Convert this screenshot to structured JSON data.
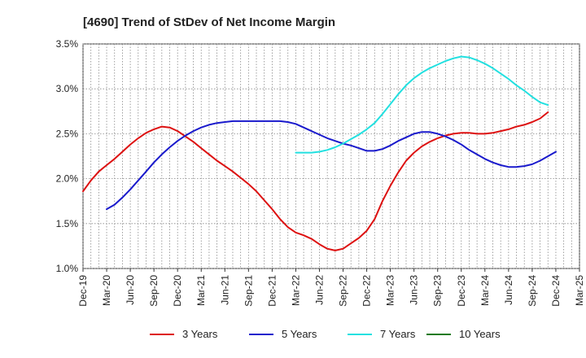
{
  "chart_data": {
    "type": "line",
    "title": "[4690]  Trend of StDev of Net Income Margin",
    "xlabel": "",
    "ylabel": "",
    "ylim": [
      1.0,
      3.5
    ],
    "yticks": [
      "1.0%",
      "1.5%",
      "2.0%",
      "2.5%",
      "3.0%",
      "3.5%"
    ],
    "ytick_values": [
      1.0,
      1.5,
      2.0,
      2.5,
      3.0,
      3.5
    ],
    "xticks": [
      "Dec-19",
      "Mar-20",
      "Jun-20",
      "Sep-20",
      "Dec-20",
      "Mar-21",
      "Jun-21",
      "Sep-21",
      "Dec-21",
      "Mar-22",
      "Jun-22",
      "Sep-22",
      "Dec-22",
      "Mar-23",
      "Jun-23",
      "Sep-23",
      "Dec-23",
      "Mar-24",
      "Jun-24",
      "Sep-24",
      "Dec-24",
      "Mar-25"
    ],
    "grid": true,
    "legend_position": "bottom",
    "series": [
      {
        "name": "3 Years",
        "color": "#dd1111",
        "points": [
          [
            "Dec-19",
            1.86
          ],
          [
            "Jan-20",
            1.98
          ],
          [
            "Feb-20",
            2.08
          ],
          [
            "Mar-20",
            2.15
          ],
          [
            "Apr-20",
            2.22
          ],
          [
            "May-20",
            2.3
          ],
          [
            "Jun-20",
            2.38
          ],
          [
            "Jul-20",
            2.45
          ],
          [
            "Aug-20",
            2.51
          ],
          [
            "Sep-20",
            2.55
          ],
          [
            "Oct-20",
            2.58
          ],
          [
            "Nov-20",
            2.57
          ],
          [
            "Dec-20",
            2.53
          ],
          [
            "Jan-21",
            2.47
          ],
          [
            "Feb-21",
            2.41
          ],
          [
            "Mar-21",
            2.34
          ],
          [
            "Apr-21",
            2.27
          ],
          [
            "May-21",
            2.2
          ],
          [
            "Jun-21",
            2.14
          ],
          [
            "Jul-21",
            2.08
          ],
          [
            "Aug-21",
            2.01
          ],
          [
            "Sep-21",
            1.94
          ],
          [
            "Oct-21",
            1.86
          ],
          [
            "Nov-21",
            1.76
          ],
          [
            "Dec-21",
            1.66
          ],
          [
            "Jan-22",
            1.55
          ],
          [
            "Feb-22",
            1.46
          ],
          [
            "Mar-22",
            1.4
          ],
          [
            "Apr-22",
            1.37
          ],
          [
            "May-22",
            1.33
          ],
          [
            "Jun-22",
            1.27
          ],
          [
            "Jul-22",
            1.22
          ],
          [
            "Aug-22",
            1.2
          ],
          [
            "Sep-22",
            1.22
          ],
          [
            "Oct-22",
            1.28
          ],
          [
            "Nov-22",
            1.34
          ],
          [
            "Dec-22",
            1.42
          ],
          [
            "Jan-23",
            1.55
          ],
          [
            "Feb-23",
            1.75
          ],
          [
            "Mar-23",
            1.92
          ],
          [
            "Apr-23",
            2.07
          ],
          [
            "May-23",
            2.2
          ],
          [
            "Jun-23",
            2.29
          ],
          [
            "Jul-23",
            2.36
          ],
          [
            "Aug-23",
            2.41
          ],
          [
            "Sep-23",
            2.45
          ],
          [
            "Oct-23",
            2.48
          ],
          [
            "Nov-23",
            2.5
          ],
          [
            "Dec-23",
            2.51
          ],
          [
            "Jan-24",
            2.51
          ],
          [
            "Feb-24",
            2.5
          ],
          [
            "Mar-24",
            2.5
          ],
          [
            "Apr-24",
            2.51
          ],
          [
            "May-24",
            2.53
          ],
          [
            "Jun-24",
            2.55
          ],
          [
            "Jul-24",
            2.58
          ],
          [
            "Aug-24",
            2.6
          ],
          [
            "Sep-24",
            2.63
          ],
          [
            "Oct-24",
            2.67
          ],
          [
            "Nov-24",
            2.74
          ]
        ]
      },
      {
        "name": "5 Years",
        "color": "#1a1acc",
        "points": [
          [
            "Mar-20",
            1.66
          ],
          [
            "Apr-20",
            1.71
          ],
          [
            "May-20",
            1.79
          ],
          [
            "Jun-20",
            1.88
          ],
          [
            "Jul-20",
            1.98
          ],
          [
            "Aug-20",
            2.08
          ],
          [
            "Sep-20",
            2.18
          ],
          [
            "Oct-20",
            2.27
          ],
          [
            "Nov-20",
            2.35
          ],
          [
            "Dec-20",
            2.42
          ],
          [
            "Jan-21",
            2.48
          ],
          [
            "Feb-21",
            2.53
          ],
          [
            "Mar-21",
            2.57
          ],
          [
            "Apr-21",
            2.6
          ],
          [
            "May-21",
            2.62
          ],
          [
            "Jun-21",
            2.63
          ],
          [
            "Jul-21",
            2.64
          ],
          [
            "Aug-21",
            2.64
          ],
          [
            "Sep-21",
            2.64
          ],
          [
            "Oct-21",
            2.64
          ],
          [
            "Nov-21",
            2.64
          ],
          [
            "Dec-21",
            2.64
          ],
          [
            "Jan-22",
            2.64
          ],
          [
            "Feb-22",
            2.63
          ],
          [
            "Mar-22",
            2.61
          ],
          [
            "Apr-22",
            2.57
          ],
          [
            "May-22",
            2.53
          ],
          [
            "Jun-22",
            2.49
          ],
          [
            "Jul-22",
            2.45
          ],
          [
            "Aug-22",
            2.42
          ],
          [
            "Sep-22",
            2.39
          ],
          [
            "Oct-22",
            2.37
          ],
          [
            "Nov-22",
            2.34
          ],
          [
            "Dec-22",
            2.31
          ],
          [
            "Jan-23",
            2.31
          ],
          [
            "Feb-23",
            2.33
          ],
          [
            "Mar-23",
            2.37
          ],
          [
            "Apr-23",
            2.42
          ],
          [
            "May-23",
            2.46
          ],
          [
            "Jun-23",
            2.5
          ],
          [
            "Jul-23",
            2.52
          ],
          [
            "Aug-23",
            2.52
          ],
          [
            "Sep-23",
            2.5
          ],
          [
            "Oct-23",
            2.47
          ],
          [
            "Nov-23",
            2.43
          ],
          [
            "Dec-23",
            2.38
          ],
          [
            "Jan-24",
            2.32
          ],
          [
            "Feb-24",
            2.27
          ],
          [
            "Mar-24",
            2.22
          ],
          [
            "Apr-24",
            2.18
          ],
          [
            "May-24",
            2.15
          ],
          [
            "Jun-24",
            2.13
          ],
          [
            "Jul-24",
            2.13
          ],
          [
            "Aug-24",
            2.14
          ],
          [
            "Sep-24",
            2.16
          ],
          [
            "Oct-24",
            2.2
          ],
          [
            "Nov-24",
            2.25
          ],
          [
            "Dec-24",
            2.3
          ]
        ]
      },
      {
        "name": "7 Years",
        "color": "#22e0e0",
        "points": [
          [
            "Mar-22",
            2.29
          ],
          [
            "Apr-22",
            2.29
          ],
          [
            "May-22",
            2.29
          ],
          [
            "Jun-22",
            2.3
          ],
          [
            "Jul-22",
            2.32
          ],
          [
            "Aug-22",
            2.35
          ],
          [
            "Sep-22",
            2.39
          ],
          [
            "Oct-22",
            2.44
          ],
          [
            "Nov-22",
            2.49
          ],
          [
            "Dec-22",
            2.55
          ],
          [
            "Jan-23",
            2.62
          ],
          [
            "Feb-23",
            2.72
          ],
          [
            "Mar-23",
            2.83
          ],
          [
            "Apr-23",
            2.94
          ],
          [
            "May-23",
            3.04
          ],
          [
            "Jun-23",
            3.12
          ],
          [
            "Jul-23",
            3.18
          ],
          [
            "Aug-23",
            3.23
          ],
          [
            "Sep-23",
            3.27
          ],
          [
            "Oct-23",
            3.31
          ],
          [
            "Nov-23",
            3.34
          ],
          [
            "Dec-23",
            3.36
          ],
          [
            "Jan-24",
            3.35
          ],
          [
            "Feb-24",
            3.32
          ],
          [
            "Mar-24",
            3.28
          ],
          [
            "Apr-24",
            3.23
          ],
          [
            "May-24",
            3.17
          ],
          [
            "Jun-24",
            3.11
          ],
          [
            "Jul-24",
            3.04
          ],
          [
            "Aug-24",
            2.98
          ],
          [
            "Sep-24",
            2.91
          ],
          [
            "Oct-24",
            2.85
          ],
          [
            "Nov-24",
            2.82
          ]
        ]
      },
      {
        "name": "10 Years",
        "color": "#1a7a1a",
        "points": []
      }
    ]
  }
}
